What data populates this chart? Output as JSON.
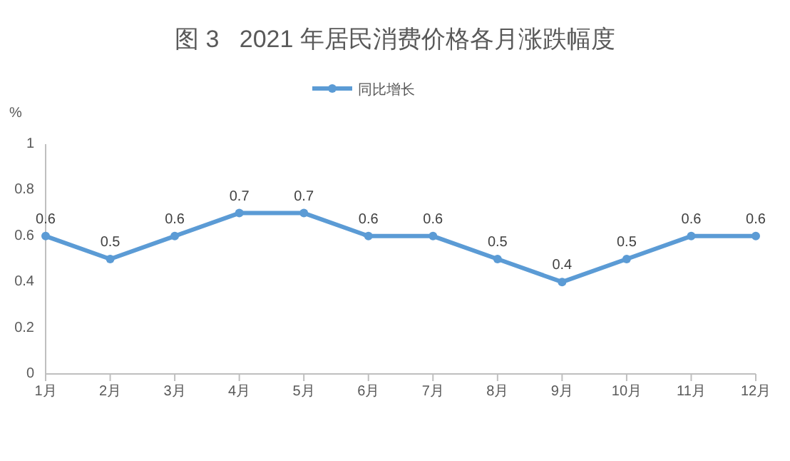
{
  "chart_data": {
    "type": "line",
    "title": "图 3   2021 年居民消费价格各月涨跌幅度",
    "ylabel": "%",
    "categories": [
      "1月",
      "2月",
      "3月",
      "4月",
      "5月",
      "6月",
      "7月",
      "8月",
      "9月",
      "10月",
      "11月",
      "12月"
    ],
    "series": [
      {
        "name": "同比增长",
        "color": "#5b9bd5",
        "values": [
          0.6,
          0.5,
          0.6,
          0.7,
          0.7,
          0.6,
          0.6,
          0.5,
          0.4,
          0.5,
          0.6,
          0.6
        ]
      }
    ],
    "ylim": [
      0,
      1
    ],
    "yticks": [
      0,
      0.2,
      0.4,
      0.6,
      0.8,
      1
    ],
    "grid": false,
    "legend": "top",
    "marker": "circle",
    "line_style": "solid",
    "data_labels": true
  }
}
